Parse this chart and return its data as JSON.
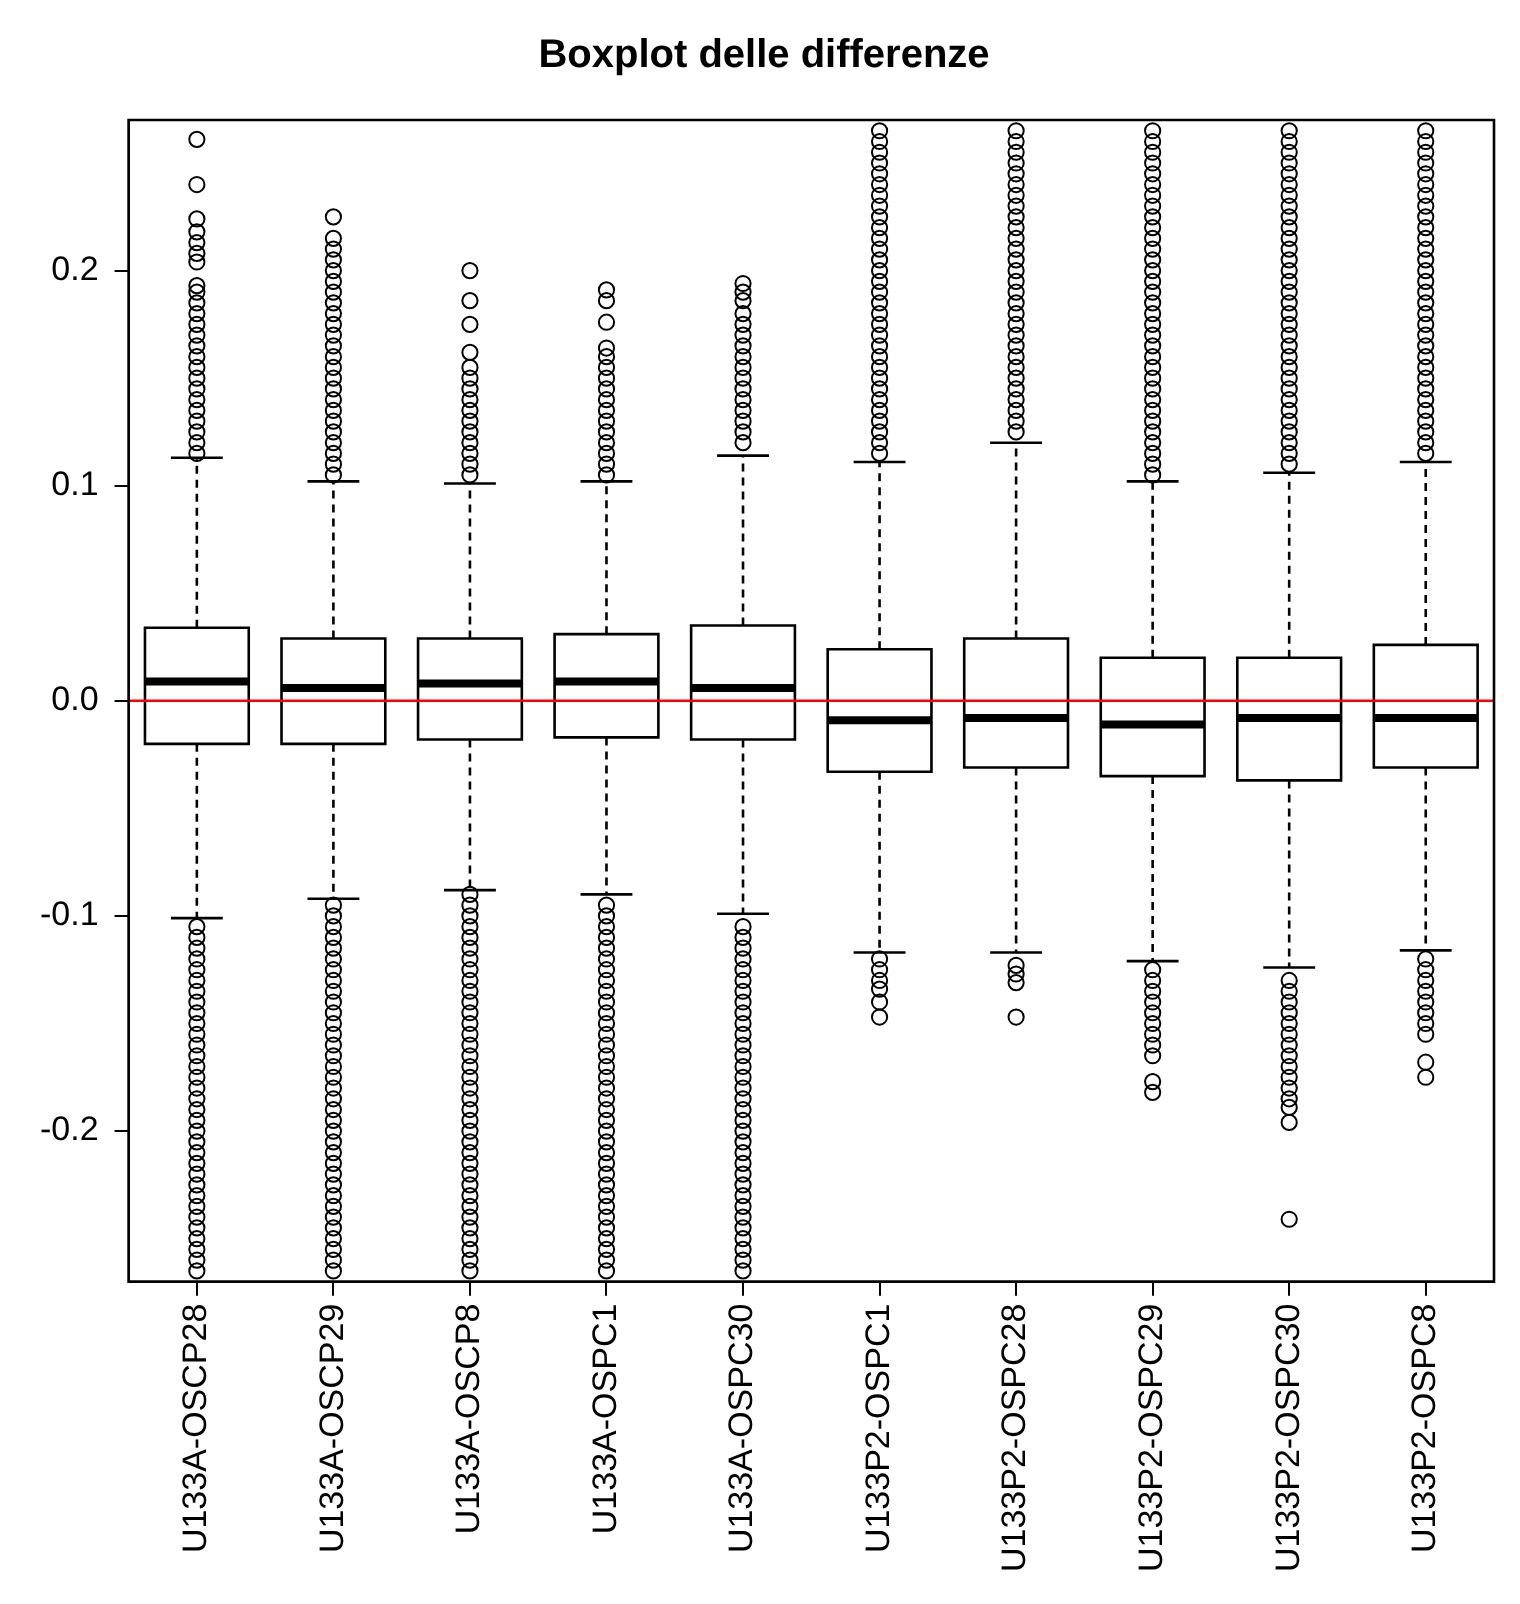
{
  "chart_data": {
    "type": "box",
    "title": "Boxplot delle differenze",
    "color": "#000000",
    "marker": "circle",
    "grid": false,
    "categories": [
      "U133A-OSCP28",
      "U133A-OSCP29",
      "U133A-OSCP8",
      "U133A-OSPC1",
      "U133A-OSPC30",
      "U133P2-OSPC1",
      "U133P2-OSPC28",
      "U133P2-OSPC29",
      "U133P2-OSPC30",
      "U133P2-OSPC8"
    ],
    "ylim": [
      -0.27,
      0.27
    ],
    "yticks": [
      -0.2,
      -0.1,
      {
        "value": 0,
        "label": "0.0"
      },
      0.1,
      0.2
    ],
    "ref_lines": [
      {
        "axis": "y",
        "value": 0,
        "color": "#ff0000"
      }
    ],
    "boxes": [
      {
        "low": -0.101,
        "q1": -0.02,
        "median": 0.009,
        "q3": 0.034,
        "high": 0.113,
        "outliers": [
          0.261,
          0.24,
          0.224,
          0.218,
          0.213,
          0.208,
          0.204,
          0.193,
          0.19,
          0.185,
          0.18,
          0.175,
          0.17,
          0.165,
          0.16,
          0.155,
          0.15,
          0.145,
          0.14,
          0.135,
          0.13,
          0.125,
          0.12,
          0.115,
          -0.105,
          -0.11,
          -0.115,
          -0.12,
          -0.125,
          -0.13,
          -0.135,
          -0.14,
          -0.145,
          -0.15,
          -0.155,
          -0.16,
          -0.165,
          -0.17,
          -0.175,
          -0.18,
          -0.185,
          -0.19,
          -0.195,
          -0.2,
          -0.205,
          -0.21,
          -0.215,
          -0.22,
          -0.225,
          -0.23,
          -0.235,
          -0.24,
          -0.245,
          -0.25,
          -0.255,
          -0.26,
          -0.265
        ]
      },
      {
        "low": -0.092,
        "q1": -0.02,
        "median": 0.006,
        "q3": 0.029,
        "high": 0.102,
        "outliers": [
          0.225,
          0.215,
          0.21,
          0.205,
          0.2,
          0.195,
          0.19,
          0.185,
          0.18,
          0.175,
          0.17,
          0.165,
          0.16,
          0.155,
          0.15,
          0.145,
          0.14,
          0.135,
          0.13,
          0.125,
          0.12,
          0.115,
          0.11,
          0.105,
          -0.095,
          -0.1,
          -0.105,
          -0.11,
          -0.115,
          -0.12,
          -0.125,
          -0.13,
          -0.135,
          -0.14,
          -0.145,
          -0.15,
          -0.155,
          -0.16,
          -0.165,
          -0.17,
          -0.175,
          -0.18,
          -0.185,
          -0.19,
          -0.195,
          -0.2,
          -0.205,
          -0.21,
          -0.215,
          -0.22,
          -0.225,
          -0.23,
          -0.235,
          -0.24,
          -0.245,
          -0.25,
          -0.255,
          -0.26,
          -0.265
        ]
      },
      {
        "low": -0.088,
        "q1": -0.018,
        "median": 0.008,
        "q3": 0.029,
        "high": 0.101,
        "outliers": [
          0.2,
          0.186,
          0.175,
          0.162,
          0.155,
          0.15,
          0.145,
          0.14,
          0.135,
          0.13,
          0.125,
          0.12,
          0.115,
          0.11,
          0.105,
          -0.09,
          -0.095,
          -0.1,
          -0.105,
          -0.11,
          -0.115,
          -0.12,
          -0.125,
          -0.13,
          -0.135,
          -0.14,
          -0.145,
          -0.15,
          -0.155,
          -0.16,
          -0.165,
          -0.17,
          -0.175,
          -0.18,
          -0.185,
          -0.19,
          -0.195,
          -0.2,
          -0.205,
          -0.21,
          -0.215,
          -0.22,
          -0.225,
          -0.23,
          -0.235,
          -0.24,
          -0.245,
          -0.25,
          -0.255,
          -0.26,
          -0.265
        ]
      },
      {
        "low": -0.09,
        "q1": -0.017,
        "median": 0.009,
        "q3": 0.031,
        "high": 0.102,
        "outliers": [
          0.191,
          0.186,
          0.176,
          0.164,
          0.16,
          0.155,
          0.15,
          0.145,
          0.14,
          0.135,
          0.13,
          0.125,
          0.12,
          0.115,
          0.11,
          0.105,
          -0.095,
          -0.1,
          -0.105,
          -0.11,
          -0.115,
          -0.12,
          -0.125,
          -0.13,
          -0.135,
          -0.14,
          -0.145,
          -0.15,
          -0.155,
          -0.16,
          -0.165,
          -0.17,
          -0.175,
          -0.18,
          -0.185,
          -0.19,
          -0.195,
          -0.2,
          -0.205,
          -0.21,
          -0.215,
          -0.22,
          -0.225,
          -0.23,
          -0.235,
          -0.24,
          -0.245,
          -0.25,
          -0.255,
          -0.26,
          -0.265
        ]
      },
      {
        "low": -0.099,
        "q1": -0.018,
        "median": 0.006,
        "q3": 0.035,
        "high": 0.114,
        "outliers": [
          0.194,
          0.19,
          0.186,
          0.18,
          0.175,
          0.17,
          0.165,
          0.16,
          0.155,
          0.15,
          0.145,
          0.14,
          0.135,
          0.13,
          0.125,
          0.12,
          -0.105,
          -0.11,
          -0.115,
          -0.12,
          -0.125,
          -0.13,
          -0.135,
          -0.14,
          -0.145,
          -0.15,
          -0.155,
          -0.16,
          -0.165,
          -0.17,
          -0.175,
          -0.18,
          -0.185,
          -0.19,
          -0.195,
          -0.2,
          -0.205,
          -0.21,
          -0.215,
          -0.22,
          -0.225,
          -0.23,
          -0.235,
          -0.24,
          -0.245,
          -0.25,
          -0.255,
          -0.26,
          -0.265
        ]
      },
      {
        "low": -0.117,
        "q1": -0.033,
        "median": -0.009,
        "q3": 0.024,
        "high": 0.111,
        "outliers": [
          0.115,
          0.12,
          0.125,
          0.13,
          0.135,
          0.14,
          0.145,
          0.15,
          0.155,
          0.16,
          0.165,
          0.17,
          0.175,
          0.18,
          0.185,
          0.19,
          0.195,
          0.2,
          0.205,
          0.21,
          0.215,
          0.22,
          0.225,
          0.23,
          0.235,
          0.24,
          0.245,
          0.25,
          0.255,
          0.26,
          0.265,
          -0.12,
          -0.125,
          -0.13,
          -0.134,
          -0.14,
          -0.147
        ]
      },
      {
        "low": -0.117,
        "q1": -0.031,
        "median": -0.008,
        "q3": 0.029,
        "high": 0.12,
        "outliers": [
          0.125,
          0.13,
          0.135,
          0.14,
          0.145,
          0.15,
          0.155,
          0.16,
          0.165,
          0.17,
          0.175,
          0.18,
          0.185,
          0.19,
          0.195,
          0.2,
          0.205,
          0.21,
          0.215,
          0.22,
          0.225,
          0.23,
          0.235,
          0.24,
          0.245,
          0.25,
          0.255,
          0.26,
          0.265,
          -0.123,
          -0.127,
          -0.131,
          -0.147
        ]
      },
      {
        "low": -0.121,
        "q1": -0.035,
        "median": -0.011,
        "q3": 0.02,
        "high": 0.102,
        "outliers": [
          0.105,
          0.11,
          0.115,
          0.12,
          0.125,
          0.13,
          0.135,
          0.14,
          0.145,
          0.15,
          0.155,
          0.16,
          0.165,
          0.17,
          0.175,
          0.18,
          0.185,
          0.19,
          0.195,
          0.2,
          0.205,
          0.21,
          0.215,
          0.22,
          0.225,
          0.23,
          0.235,
          0.24,
          0.245,
          0.25,
          0.255,
          0.26,
          0.265,
          -0.125,
          -0.13,
          -0.135,
          -0.14,
          -0.145,
          -0.15,
          -0.155,
          -0.16,
          -0.165,
          -0.177,
          -0.182
        ]
      },
      {
        "low": -0.124,
        "q1": -0.037,
        "median": -0.008,
        "q3": 0.02,
        "high": 0.106,
        "outliers": [
          0.11,
          0.115,
          0.12,
          0.125,
          0.13,
          0.135,
          0.14,
          0.145,
          0.15,
          0.155,
          0.16,
          0.165,
          0.17,
          0.175,
          0.18,
          0.185,
          0.19,
          0.195,
          0.2,
          0.205,
          0.21,
          0.215,
          0.22,
          0.225,
          0.23,
          0.235,
          0.24,
          0.245,
          0.25,
          0.255,
          0.26,
          0.265,
          -0.13,
          -0.135,
          -0.14,
          -0.145,
          -0.15,
          -0.155,
          -0.16,
          -0.165,
          -0.17,
          -0.175,
          -0.18,
          -0.185,
          -0.189,
          -0.196,
          -0.241
        ]
      },
      {
        "low": -0.116,
        "q1": -0.031,
        "median": -0.008,
        "q3": 0.026,
        "high": 0.111,
        "outliers": [
          0.115,
          0.12,
          0.125,
          0.13,
          0.135,
          0.14,
          0.145,
          0.15,
          0.155,
          0.16,
          0.165,
          0.17,
          0.175,
          0.18,
          0.185,
          0.19,
          0.195,
          0.2,
          0.205,
          0.21,
          0.215,
          0.22,
          0.225,
          0.23,
          0.235,
          0.24,
          0.245,
          0.25,
          0.255,
          0.26,
          0.265,
          -0.12,
          -0.125,
          -0.13,
          -0.135,
          -0.14,
          -0.145,
          -0.15,
          -0.155,
          -0.168,
          -0.175
        ]
      }
    ]
  }
}
